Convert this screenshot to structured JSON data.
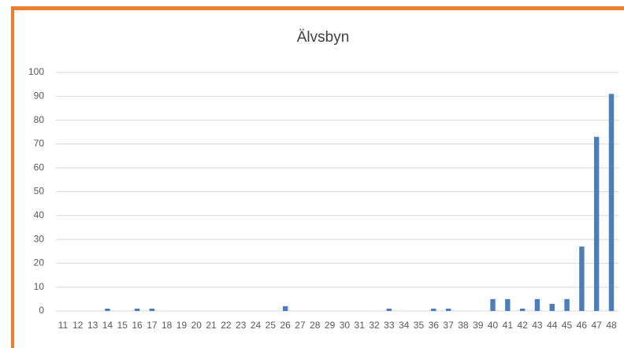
{
  "chart_data": {
    "type": "bar",
    "title": "Älvsbyn",
    "categories": [
      "11",
      "12",
      "13",
      "14",
      "15",
      "16",
      "17",
      "18",
      "19",
      "20",
      "21",
      "22",
      "23",
      "24",
      "25",
      "26",
      "27",
      "28",
      "29",
      "30",
      "31",
      "32",
      "33",
      "34",
      "35",
      "36",
      "37",
      "38",
      "39",
      "40",
      "41",
      "42",
      "43",
      "44",
      "45",
      "46",
      "47",
      "48"
    ],
    "values": [
      0,
      0,
      0,
      1,
      0,
      1,
      1,
      0,
      0,
      0,
      0,
      0,
      0,
      0,
      0,
      2,
      0,
      0,
      0,
      0,
      0,
      0,
      1,
      0,
      0,
      1,
      1,
      0,
      0,
      5,
      5,
      1,
      5,
      3,
      5,
      27,
      73,
      91
    ],
    "color": "#4a7ebf",
    "ylim": [
      0,
      100
    ],
    "yticks": [
      0,
      10,
      20,
      30,
      40,
      50,
      60,
      70,
      80,
      90,
      100
    ],
    "grid": true
  }
}
